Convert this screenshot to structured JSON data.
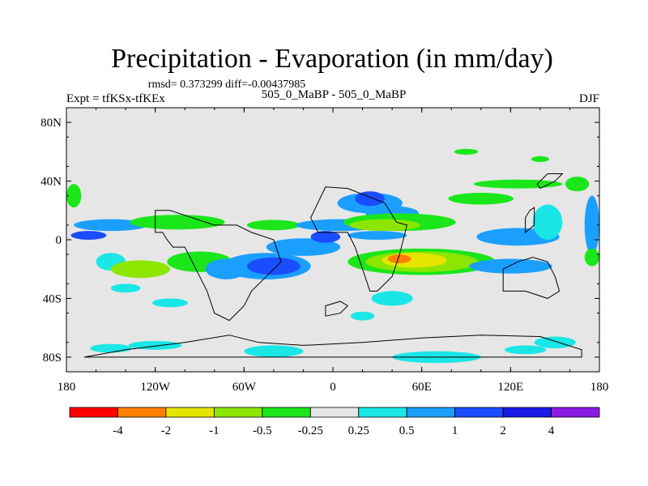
{
  "chart_data": {
    "type": "heatmap",
    "title": "Precipitation - Evaporation (in mm/day)",
    "stats": "rmsd= 0.373299 diff=-0.00437985",
    "left_label": "Expt = tfKSx-tfKEx",
    "center_label": "505_0_MaBP - 505_0_MaBP",
    "right_label": "DJF",
    "x_range": [
      -180,
      180
    ],
    "y_range": [
      -90,
      90
    ],
    "x_ticks": [
      {
        "value": -180,
        "label": "180"
      },
      {
        "value": -120,
        "label": "120W"
      },
      {
        "value": -60,
        "label": "60W"
      },
      {
        "value": 0,
        "label": "0"
      },
      {
        "value": 60,
        "label": "60E"
      },
      {
        "value": 120,
        "label": "120E"
      },
      {
        "value": 180,
        "label": "180"
      }
    ],
    "y_ticks": [
      {
        "value": 80,
        "label": "80N"
      },
      {
        "value": 40,
        "label": "40N"
      },
      {
        "value": 0,
        "label": "0"
      },
      {
        "value": -40,
        "label": "40S"
      },
      {
        "value": -80,
        "label": "80S"
      }
    ],
    "background_color": "#e6e6e6",
    "levels": [
      "-4",
      "-2",
      "-1",
      "-0.5",
      "-0.25",
      "0.25",
      "0.5",
      "1",
      "2",
      "4"
    ],
    "colorbar_colors": [
      "#ff0000",
      "#ff8000",
      "#e5e500",
      "#8ce600",
      "#1ae61a",
      "#e6e6e6",
      "#1ae6e6",
      "#1a9fff",
      "#1a4dff",
      "#1a1ae6",
      "#8c1ae6"
    ],
    "regions": [
      {
        "lon": -150,
        "lat": 10,
        "rx": 25,
        "ry": 4,
        "value": 0.6
      },
      {
        "lon": -165,
        "lat": 3,
        "rx": 12,
        "ry": 3,
        "value": 1.2
      },
      {
        "lon": -150,
        "lat": -15,
        "rx": 10,
        "ry": 6,
        "value": 0.4
      },
      {
        "lon": -175,
        "lat": 30,
        "rx": 5,
        "ry": 8,
        "value": -0.4
      },
      {
        "lon": -105,
        "lat": 12,
        "rx": 32,
        "ry": 5,
        "value": -0.4
      },
      {
        "lon": -130,
        "lat": -20,
        "rx": 20,
        "ry": 6,
        "value": -0.6
      },
      {
        "lon": -90,
        "lat": -15,
        "rx": 22,
        "ry": 7,
        "value": -0.4
      },
      {
        "lon": -72,
        "lat": -20,
        "rx": 14,
        "ry": 7,
        "value": 0.8
      },
      {
        "lon": -45,
        "lat": -18,
        "rx": 30,
        "ry": 9,
        "value": 0.6
      },
      {
        "lon": -40,
        "lat": -18,
        "rx": 18,
        "ry": 6,
        "value": 1.4
      },
      {
        "lon": -20,
        "lat": -5,
        "rx": 25,
        "ry": 6,
        "value": 0.5
      },
      {
        "lon": -5,
        "lat": 2,
        "rx": 10,
        "ry": 4,
        "value": 1.2
      },
      {
        "lon": -40,
        "lat": 10,
        "rx": 18,
        "ry": 3.5,
        "value": -0.4
      },
      {
        "lon": 5,
        "lat": 10,
        "rx": 30,
        "ry": 4,
        "value": 0.6
      },
      {
        "lon": 25,
        "lat": 25,
        "rx": 22,
        "ry": 7,
        "value": 0.6
      },
      {
        "lon": 25,
        "lat": 28,
        "rx": 10,
        "ry": 5,
        "value": 1.5
      },
      {
        "lon": 40,
        "lat": 18,
        "rx": 18,
        "ry": 5,
        "value": 0.6
      },
      {
        "lon": 45,
        "lat": 12,
        "rx": 38,
        "ry": 6,
        "value": -0.4
      },
      {
        "lon": 35,
        "lat": 10,
        "rx": 24,
        "ry": 4,
        "value": -0.8
      },
      {
        "lon": 60,
        "lat": -15,
        "rx": 50,
        "ry": 9,
        "value": -0.4
      },
      {
        "lon": 60,
        "lat": -15,
        "rx": 38,
        "ry": 7,
        "value": -0.8
      },
      {
        "lon": 55,
        "lat": -14,
        "rx": 22,
        "ry": 5,
        "value": -1.5
      },
      {
        "lon": 45,
        "lat": -13,
        "rx": 8,
        "ry": 3,
        "value": -2.5
      },
      {
        "lon": 120,
        "lat": -18,
        "rx": 28,
        "ry": 5,
        "value": 0.6
      },
      {
        "lon": 100,
        "lat": 28,
        "rx": 22,
        "ry": 4,
        "value": -0.4
      },
      {
        "lon": 30,
        "lat": 3,
        "rx": 20,
        "ry": 3,
        "value": 0.5
      },
      {
        "lon": 125,
        "lat": 2,
        "rx": 28,
        "ry": 6,
        "value": 0.6
      },
      {
        "lon": 145,
        "lat": 12,
        "rx": 10,
        "ry": 12,
        "value": 0.4
      },
      {
        "lon": 175,
        "lat": 10,
        "rx": 5,
        "ry": 20,
        "value": 0.5
      },
      {
        "lon": 175,
        "lat": -12,
        "rx": 5,
        "ry": 6,
        "value": -0.4
      },
      {
        "lon": 165,
        "lat": 38,
        "rx": 8,
        "ry": 5,
        "value": -0.4
      },
      {
        "lon": 40,
        "lat": -40,
        "rx": 14,
        "ry": 5,
        "value": 0.4
      },
      {
        "lon": -110,
        "lat": -43,
        "rx": 12,
        "ry": 3,
        "value": 0.4
      },
      {
        "lon": -140,
        "lat": -33,
        "rx": 10,
        "ry": 3,
        "value": 0.4
      },
      {
        "lon": 70,
        "lat": -80,
        "rx": 30,
        "ry": 4,
        "value": 0.4
      },
      {
        "lon": -120,
        "lat": -72,
        "rx": 18,
        "ry": 3,
        "value": 0.4
      },
      {
        "lon": -40,
        "lat": -76,
        "rx": 20,
        "ry": 4,
        "value": 0.4
      },
      {
        "lon": 150,
        "lat": -70,
        "rx": 14,
        "ry": 4,
        "value": 0.4
      },
      {
        "lon": 20,
        "lat": -52,
        "rx": 8,
        "ry": 3,
        "value": 0.4
      },
      {
        "lon": -150,
        "lat": -74,
        "rx": 14,
        "ry": 3,
        "value": 0.4
      },
      {
        "lon": 130,
        "lat": -75,
        "rx": 14,
        "ry": 3,
        "value": 0.4
      },
      {
        "lon": 125,
        "lat": 38,
        "rx": 30,
        "ry": 3,
        "value": -0.4
      },
      {
        "lon": 90,
        "lat": 60,
        "rx": 8,
        "ry": 2,
        "value": -0.4
      },
      {
        "lon": 140,
        "lat": 55,
        "rx": 6,
        "ry": 2,
        "value": -0.4
      }
    ],
    "land_outlines": [
      [
        [
          -120,
          5
        ],
        [
          -115,
          5
        ],
        [
          -112,
          0
        ],
        [
          -108,
          -5
        ],
        [
          -100,
          -5
        ],
        [
          -95,
          -15
        ],
        [
          -90,
          -25
        ],
        [
          -85,
          -35
        ],
        [
          -80,
          -50
        ],
        [
          -70,
          -55
        ],
        [
          -65,
          -50
        ],
        [
          -60,
          -45
        ],
        [
          -55,
          -35
        ],
        [
          -45,
          -25
        ],
        [
          -35,
          -15
        ],
        [
          -40,
          0
        ],
        [
          -55,
          5
        ],
        [
          -65,
          10
        ],
        [
          -80,
          10
        ],
        [
          -95,
          15
        ],
        [
          -110,
          20
        ],
        [
          -120,
          20
        ]
      ],
      [
        [
          -15,
          15
        ],
        [
          -10,
          5
        ],
        [
          0,
          5
        ],
        [
          10,
          5
        ],
        [
          15,
          -5
        ],
        [
          20,
          -20
        ],
        [
          25,
          -35
        ],
        [
          30,
          -35
        ],
        [
          40,
          -25
        ],
        [
          45,
          -10
        ],
        [
          50,
          10
        ],
        [
          43,
          12
        ],
        [
          35,
          25
        ],
        [
          10,
          35
        ],
        [
          -5,
          36
        ]
      ],
      [
        [
          -168,
          -80
        ],
        [
          -140,
          -75
        ],
        [
          -100,
          -70
        ],
        [
          -70,
          -65
        ],
        [
          -50,
          -70
        ],
        [
          -20,
          -72
        ],
        [
          20,
          -70
        ],
        [
          60,
          -67
        ],
        [
          100,
          -65
        ],
        [
          140,
          -66
        ],
        [
          168,
          -75
        ],
        [
          168,
          -80
        ]
      ],
      [
        [
          115,
          -20
        ],
        [
          125,
          -15
        ],
        [
          135,
          -12
        ],
        [
          145,
          -15
        ],
        [
          150,
          -25
        ],
        [
          153,
          -35
        ],
        [
          145,
          -40
        ],
        [
          130,
          -35
        ],
        [
          115,
          -35
        ]
      ],
      [
        [
          -5,
          -45
        ],
        [
          5,
          -42
        ],
        [
          10,
          -45
        ],
        [
          5,
          -50
        ],
        [
          -5,
          -52
        ]
      ],
      [
        [
          140,
          35
        ],
        [
          150,
          40
        ],
        [
          155,
          45
        ],
        [
          145,
          45
        ],
        [
          138,
          38
        ]
      ],
      [
        [
          133,
          20
        ],
        [
          136,
          22
        ],
        [
          136,
          10
        ],
        [
          130,
          5
        ],
        [
          130,
          15
        ]
      ]
    ]
  }
}
